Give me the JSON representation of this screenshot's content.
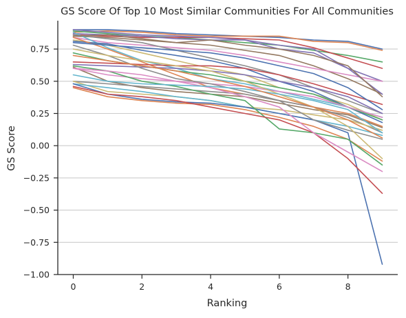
{
  "chart_data": {
    "type": "line",
    "title": "GS Score Of Top 10 Most Similar Communities For All Communities",
    "xlabel": "Ranking",
    "ylabel": "GS Score",
    "xlim": [
      -0.45,
      9.45
    ],
    "ylim": [
      -1.0,
      0.97
    ],
    "x": [
      0,
      1,
      2,
      3,
      4,
      5,
      6,
      7,
      8,
      9
    ],
    "x_ticks": [
      0,
      2,
      4,
      6,
      8
    ],
    "y_ticks": [
      -1.0,
      -0.75,
      -0.5,
      -0.25,
      0.0,
      0.25,
      0.5,
      0.75
    ],
    "x_tick_labels": [
      "0",
      "2",
      "4",
      "6",
      "8"
    ],
    "y_tick_labels": [
      "−1.00",
      "−0.75",
      "−0.50",
      "−0.25",
      "0.00",
      "0.25",
      "0.50",
      "0.75"
    ],
    "grid": "horizontal",
    "legend": "none",
    "palette": [
      "#4c72b0",
      "#dd8452",
      "#55a868",
      "#c44e52",
      "#8172b3",
      "#937860",
      "#da8bc3",
      "#8c8c8c",
      "#ccb974",
      "#64b5cd"
    ],
    "series": [
      {
        "values": [
          0.9,
          0.9,
          0.89,
          0.87,
          0.86,
          0.85,
          0.84,
          0.82,
          0.81,
          0.75
        ]
      },
      {
        "values": [
          0.88,
          0.89,
          0.88,
          0.86,
          0.85,
          0.85,
          0.85,
          0.81,
          0.8,
          0.74
        ]
      },
      {
        "values": [
          0.89,
          0.87,
          0.85,
          0.84,
          0.82,
          0.8,
          0.78,
          0.74,
          0.7,
          0.65
        ]
      },
      {
        "values": [
          0.86,
          0.85,
          0.84,
          0.84,
          0.84,
          0.83,
          0.82,
          0.76,
          0.68,
          0.6
        ]
      },
      {
        "values": [
          0.87,
          0.86,
          0.85,
          0.83,
          0.82,
          0.82,
          0.75,
          0.72,
          0.6,
          0.5
        ]
      },
      {
        "values": [
          0.85,
          0.84,
          0.82,
          0.8,
          0.78,
          0.74,
          0.7,
          0.62,
          0.52,
          0.4
        ]
      },
      {
        "values": [
          0.84,
          0.8,
          0.78,
          0.76,
          0.74,
          0.7,
          0.65,
          0.6,
          0.55,
          0.5
        ]
      },
      {
        "values": [
          0.86,
          0.83,
          0.8,
          0.74,
          0.68,
          0.62,
          0.55,
          0.45,
          0.35,
          0.25
        ]
      },
      {
        "values": [
          0.82,
          0.78,
          0.72,
          0.66,
          0.6,
          0.55,
          0.45,
          0.4,
          0.32,
          0.2
        ]
      },
      {
        "values": [
          0.88,
          0.76,
          0.66,
          0.6,
          0.52,
          0.48,
          0.42,
          0.36,
          0.3,
          0.22
        ]
      },
      {
        "values": [
          0.81,
          0.79,
          0.74,
          0.7,
          0.66,
          0.6,
          0.5,
          0.42,
          0.3,
          0.18
        ]
      },
      {
        "values": [
          0.84,
          0.75,
          0.65,
          0.55,
          0.45,
          0.4,
          0.35,
          0.3,
          0.25,
          0.15
        ]
      },
      {
        "values": [
          0.72,
          0.66,
          0.62,
          0.58,
          0.55,
          0.5,
          0.45,
          0.4,
          0.3,
          0.2
        ]
      },
      {
        "values": [
          0.65,
          0.64,
          0.63,
          0.62,
          0.62,
          0.6,
          0.55,
          0.48,
          0.4,
          0.32
        ]
      },
      {
        "values": [
          0.63,
          0.62,
          0.61,
          0.6,
          0.58,
          0.55,
          0.5,
          0.45,
          0.38,
          0.25
        ]
      },
      {
        "values": [
          0.61,
          0.5,
          0.45,
          0.42,
          0.4,
          0.38,
          0.33,
          0.28,
          0.24,
          0.14
        ]
      },
      {
        "values": [
          0.6,
          0.55,
          0.52,
          0.5,
          0.48,
          0.46,
          0.42,
          0.38,
          0.3,
          0.22
        ]
      },
      {
        "values": [
          0.5,
          0.48,
          0.46,
          0.44,
          0.42,
          0.4,
          0.35,
          0.3,
          0.22,
          0.1
        ]
      },
      {
        "values": [
          0.5,
          0.42,
          0.4,
          0.38,
          0.35,
          0.3,
          0.28,
          0.24,
          0.2,
          0.12
        ]
      },
      {
        "values": [
          0.48,
          0.45,
          0.42,
          0.38,
          0.35,
          0.3,
          0.25,
          0.2,
          0.15,
          0.08
        ]
      },
      {
        "values": [
          0.48,
          0.4,
          0.36,
          0.34,
          0.33,
          0.3,
          0.25,
          0.2,
          0.1,
          -0.92
        ]
      },
      {
        "values": [
          0.45,
          0.38,
          0.35,
          0.33,
          0.32,
          0.28,
          0.22,
          0.15,
          0.05,
          -0.12
        ]
      },
      {
        "values": [
          0.62,
          0.58,
          0.5,
          0.46,
          0.4,
          0.35,
          0.13,
          0.1,
          0.05,
          -0.15
        ]
      },
      {
        "values": [
          0.46,
          0.4,
          0.38,
          0.35,
          0.3,
          0.25,
          0.2,
          0.1,
          -0.1,
          -0.37
        ]
      },
      {
        "values": [
          0.9,
          0.88,
          0.86,
          0.85,
          0.84,
          0.82,
          0.78,
          0.75,
          0.6,
          0.4
        ]
      },
      {
        "values": [
          0.85,
          0.86,
          0.83,
          0.8,
          0.82,
          0.78,
          0.75,
          0.7,
          0.62,
          0.38
        ]
      },
      {
        "values": [
          0.6,
          0.58,
          0.55,
          0.5,
          0.45,
          0.38,
          0.3,
          0.1,
          -0.05,
          -0.2
        ]
      },
      {
        "values": [
          0.78,
          0.7,
          0.6,
          0.52,
          0.48,
          0.42,
          0.35,
          0.2,
          0.12,
          0.05
        ]
      },
      {
        "values": [
          0.75,
          0.7,
          0.66,
          0.62,
          0.58,
          0.5,
          0.4,
          0.3,
          0.15,
          -0.1
        ]
      },
      {
        "values": [
          0.55,
          0.5,
          0.48,
          0.47,
          0.46,
          0.44,
          0.4,
          0.35,
          0.28,
          0.1
        ]
      },
      {
        "values": [
          0.8,
          0.78,
          0.76,
          0.74,
          0.72,
          0.68,
          0.62,
          0.56,
          0.45,
          0.28
        ]
      },
      {
        "values": [
          0.7,
          0.66,
          0.62,
          0.58,
          0.52,
          0.46,
          0.38,
          0.3,
          0.2,
          0.06
        ]
      }
    ]
  }
}
